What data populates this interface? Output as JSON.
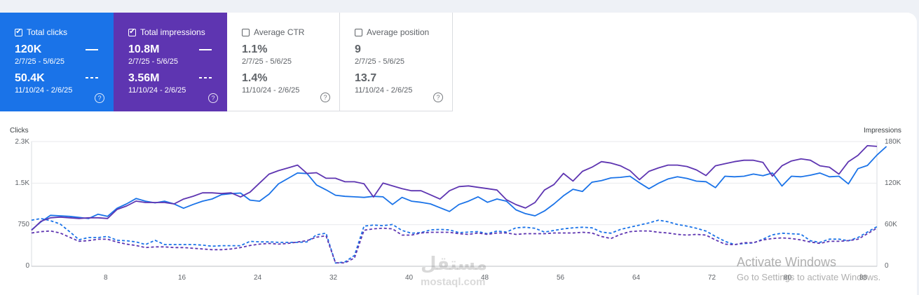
{
  "metrics": [
    {
      "name": "Total clicks",
      "checked": true,
      "value_current": "120K",
      "range_current": "2/7/25 - 5/6/25",
      "value_previous": "50.4K",
      "range_previous": "11/10/24 - 2/6/25",
      "color": "#1a73e8"
    },
    {
      "name": "Total impressions",
      "checked": true,
      "value_current": "10.8M",
      "range_current": "2/7/25 - 5/6/25",
      "value_previous": "3.56M",
      "range_previous": "11/10/24 - 2/6/25",
      "color": "#5e35b1"
    },
    {
      "name": "Average CTR",
      "checked": false,
      "value_current": "1.1%",
      "range_current": "2/7/25 - 5/6/25",
      "value_previous": "1.4%",
      "range_previous": "11/10/24 - 2/6/25"
    },
    {
      "name": "Average position",
      "checked": false,
      "value_current": "9",
      "range_current": "2/7/25 - 5/6/25",
      "value_previous": "13.7",
      "range_previous": "11/10/24 - 2/6/25"
    }
  ],
  "check_glyph": "✔",
  "help_glyph": "?",
  "chart": {
    "left_axis_title": "Clicks",
    "right_axis_title": "Impressions",
    "left_ticks": [
      "2.3K",
      "1.5K",
      "750",
      "0"
    ],
    "right_ticks": [
      "180K",
      "120K",
      "60K",
      "0"
    ],
    "x_ticks": [
      "8",
      "16",
      "24",
      "32",
      "40",
      "48",
      "56",
      "64",
      "72",
      "80",
      "88"
    ]
  },
  "chart_data": {
    "type": "line",
    "x_range": [
      1,
      90
    ],
    "y_left_range": [
      0,
      2300
    ],
    "y_right_range": [
      0,
      180000
    ],
    "series": [
      {
        "name": "Total clicks",
        "axis": "left",
        "style": "solid",
        "color": "#1a73e8",
        "values": [
          670,
          820,
          940,
          930,
          920,
          900,
          880,
          960,
          920,
          1070,
          1150,
          1250,
          1200,
          1170,
          1200,
          1150,
          1070,
          1140,
          1200,
          1240,
          1320,
          1340,
          1350,
          1220,
          1200,
          1330,
          1520,
          1620,
          1720,
          1710,
          1500,
          1410,
          1310,
          1290,
          1280,
          1270,
          1290,
          1280,
          1140,
          1270,
          1200,
          1180,
          1150,
          1080,
          1010,
          1140,
          1200,
          1280,
          1180,
          1240,
          1200,
          1040,
          970,
          930,
          1020,
          1150,
          1300,
          1420,
          1380,
          1550,
          1580,
          1630,
          1640,
          1660,
          1540,
          1430,
          1530,
          1610,
          1650,
          1620,
          1570,
          1560,
          1450,
          1660,
          1650,
          1660,
          1700,
          1670,
          1720,
          1480,
          1660,
          1650,
          1680,
          1720,
          1650,
          1660,
          1520,
          1800,
          1860,
          2050,
          2210
        ]
      },
      {
        "name": "Total impressions",
        "axis": "right",
        "style": "solid",
        "color": "#5e35b1",
        "values": [
          52000,
          65000,
          70000,
          71000,
          70000,
          69000,
          70000,
          70000,
          69000,
          82000,
          87000,
          94000,
          92000,
          92000,
          92000,
          90000,
          97000,
          101000,
          106000,
          106000,
          105000,
          106000,
          100000,
          107000,
          120000,
          133000,
          138000,
          142000,
          146000,
          134000,
          135000,
          127000,
          127000,
          122000,
          122000,
          119000,
          100000,
          120000,
          116000,
          112000,
          109000,
          109000,
          103000,
          97000,
          109000,
          115000,
          116000,
          114000,
          112000,
          110000,
          96000,
          89000,
          84000,
          92000,
          110000,
          118000,
          134000,
          123000,
          137000,
          143000,
          151000,
          149000,
          145000,
          138000,
          125000,
          137000,
          142000,
          146000,
          146000,
          144000,
          139000,
          131000,
          145000,
          148000,
          151000,
          153000,
          153000,
          150000,
          130000,
          145000,
          152000,
          155000,
          153000,
          145000,
          143000,
          133000,
          151000,
          160000,
          174000,
          173000
        ]
      },
      {
        "name": "Clicks 11/10/24 - 2/6/25",
        "axis": "left",
        "style": "dashed",
        "color": "#1a73e8",
        "values": [
          850,
          880,
          840,
          780,
          640,
          490,
          530,
          530,
          550,
          480,
          470,
          450,
          400,
          480,
          400,
          400,
          400,
          400,
          390,
          370,
          380,
          380,
          380,
          460,
          450,
          450,
          440,
          440,
          440,
          450,
          580,
          610,
          60,
          80,
          200,
          740,
          760,
          750,
          770,
          660,
          610,
          620,
          670,
          680,
          670,
          620,
          630,
          640,
          600,
          650,
          630,
          710,
          720,
          700,
          630,
          660,
          690,
          710,
          720,
          710,
          630,
          610,
          680,
          720,
          760,
          800,
          850,
          820,
          770,
          740,
          700,
          650,
          550,
          460,
          400,
          420,
          430,
          500,
          580,
          610,
          600,
          590,
          470,
          440,
          500,
          500,
          470,
          530,
          630,
          730
        ]
      },
      {
        "name": "Impressions 11/10/24 - 2/6/25",
        "axis": "right",
        "style": "dashed",
        "color": "#5e35b1",
        "values": [
          48000,
          50000,
          51000,
          48000,
          42000,
          36000,
          37000,
          39000,
          39000,
          35000,
          32000,
          30000,
          27000,
          28000,
          28000,
          27000,
          27000,
          26000,
          25000,
          24000,
          24000,
          25000,
          27000,
          30000,
          32000,
          33000,
          32000,
          33000,
          35000,
          37000,
          42000,
          44000,
          5000,
          5000,
          12000,
          52000,
          54000,
          55000,
          54000,
          45000,
          45000,
          48000,
          49000,
          49000,
          49000,
          47000,
          46000,
          48000,
          46000,
          48000,
          48000,
          46000,
          47000,
          47000,
          47000,
          48000,
          48000,
          48000,
          49000,
          48000,
          43000,
          40000,
          46000,
          50000,
          51000,
          51000,
          49000,
          48000,
          46000,
          45000,
          46000,
          45000,
          38000,
          32000,
          31000,
          34000,
          34000,
          38000,
          40000,
          41000,
          40000,
          38000,
          35000,
          33000,
          36000,
          36000,
          37000,
          39000,
          47000,
          55000
        ]
      }
    ]
  }
}
